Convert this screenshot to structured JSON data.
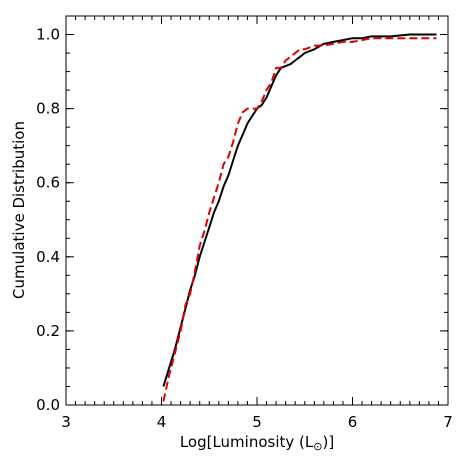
{
  "chart_data": {
    "type": "line",
    "title": "",
    "xlabel": "Log[Luminosity (L",
    "xlabel_sub": "⊙",
    "xlabel_end": ")]",
    "ylabel": "Cumulative Distribution",
    "xlim": [
      3,
      7
    ],
    "ylim": [
      0,
      1.05
    ],
    "x_ticks": [
      3,
      4,
      5,
      6,
      7
    ],
    "x_tick_labels": [
      "3",
      "4",
      "5",
      "6",
      "7"
    ],
    "y_ticks": [
      0,
      0.2,
      0.4,
      0.6,
      0.8,
      1.0
    ],
    "y_tick_labels": [
      "0.0",
      "0.2",
      "0.4",
      "0.6",
      "0.8",
      "1.0"
    ],
    "grid": false,
    "series": [
      {
        "color": "#000000",
        "style": "solid",
        "x": [
          4.02,
          4.08,
          4.14,
          4.2,
          4.25,
          4.3,
          4.35,
          4.4,
          4.45,
          4.5,
          4.55,
          4.6,
          4.65,
          4.7,
          4.75,
          4.8,
          4.85,
          4.9,
          4.95,
          5.0,
          5.05,
          5.1,
          5.15,
          5.2,
          5.25,
          5.3,
          5.35,
          5.4,
          5.45,
          5.5,
          5.6,
          5.7,
          5.8,
          5.9,
          6.0,
          6.1,
          6.2,
          6.4,
          6.6,
          6.8,
          6.88
        ],
        "y": [
          0.05,
          0.1,
          0.15,
          0.21,
          0.26,
          0.31,
          0.35,
          0.4,
          0.44,
          0.48,
          0.52,
          0.55,
          0.59,
          0.62,
          0.66,
          0.7,
          0.73,
          0.76,
          0.78,
          0.8,
          0.81,
          0.83,
          0.86,
          0.89,
          0.91,
          0.915,
          0.92,
          0.93,
          0.94,
          0.95,
          0.96,
          0.975,
          0.98,
          0.985,
          0.99,
          0.99,
          0.995,
          0.995,
          1.0,
          1.0,
          1.0
        ]
      },
      {
        "color": "#e00000",
        "style": "dashed",
        "x": [
          4.02,
          4.08,
          4.14,
          4.2,
          4.25,
          4.3,
          4.35,
          4.4,
          4.45,
          4.5,
          4.55,
          4.6,
          4.65,
          4.7,
          4.75,
          4.8,
          4.85,
          4.9,
          4.95,
          5.0,
          5.05,
          5.1,
          5.15,
          5.2,
          5.25,
          5.3,
          5.35,
          5.4,
          5.45,
          5.5,
          5.6,
          5.7,
          5.8,
          5.9,
          6.0,
          6.1,
          6.2,
          6.4,
          6.6,
          6.8,
          6.88
        ],
        "y": [
          0.01,
          0.08,
          0.14,
          0.2,
          0.27,
          0.3,
          0.36,
          0.43,
          0.47,
          0.52,
          0.56,
          0.6,
          0.65,
          0.67,
          0.71,
          0.76,
          0.79,
          0.8,
          0.8,
          0.8,
          0.82,
          0.85,
          0.87,
          0.91,
          0.91,
          0.93,
          0.94,
          0.95,
          0.96,
          0.96,
          0.97,
          0.97,
          0.975,
          0.98,
          0.98,
          0.985,
          0.99,
          0.99,
          0.99,
          0.99,
          0.99
        ]
      }
    ]
  }
}
